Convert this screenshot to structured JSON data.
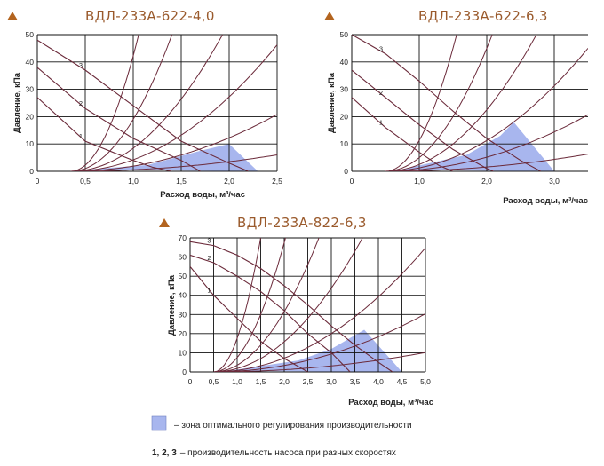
{
  "chart_data": [
    {
      "type": "line",
      "title": "ВДЛ-233А-622-4,0",
      "xlabel": "Расход воды, м³/час",
      "ylabel": "Давление, кПа",
      "xlim": [
        0,
        2.5
      ],
      "ylim": [
        0,
        50
      ],
      "xticks": [
        "0",
        "0,5",
        "1,0",
        "1,5",
        "2,0",
        "2,5"
      ],
      "yticks": [
        "0",
        "10",
        "20",
        "30",
        "40",
        "50"
      ],
      "optimal_zone": [
        [
          0.5,
          0.6
        ],
        [
          1.15,
          2.3
        ],
        [
          1.7,
          7.5
        ],
        [
          2.0,
          10
        ],
        [
          2.3,
          0
        ],
        [
          0.5,
          0.6
        ]
      ],
      "series": [
        {
          "name": "1",
          "values": [
            [
              0.0,
              27
            ],
            [
              0.5,
              11
            ],
            [
              1.0,
              4
            ],
            [
              1.2,
              1.5
            ],
            [
              1.4,
              0
            ]
          ]
        },
        {
          "name": "2",
          "values": [
            [
              0.0,
              38
            ],
            [
              0.5,
              23
            ],
            [
              1.0,
              12
            ],
            [
              1.5,
              4
            ],
            [
              1.7,
              0
            ]
          ]
        },
        {
          "name": "3",
          "values": [
            [
              0.0,
              48
            ],
            [
              0.5,
              37
            ],
            [
              1.0,
              24
            ],
            [
              1.5,
              11
            ],
            [
              2.0,
              3
            ],
            [
              2.2,
              0
            ]
          ]
        }
      ],
      "system_curves": [
        {
          "a": 1.3,
          "x0": 0.35
        },
        {
          "a": 4.5,
          "x0": 0.35
        },
        {
          "a": 10,
          "x0": 0.35
        },
        {
          "a": 20,
          "x0": 0.35
        },
        {
          "a": 45,
          "x0": 0.35
        },
        {
          "a": 100,
          "x0": 0.35
        }
      ]
    },
    {
      "type": "line",
      "title": "ВДЛ-233А-622-6,3",
      "xlabel": "Расход воды, м³/час",
      "ylabel": "Давление, кПа",
      "xlim": [
        0,
        3.5
      ],
      "ylim": [
        0,
        50
      ],
      "xticks": [
        "0",
        "1,0",
        "2,0",
        "3,0"
      ],
      "yticks": [
        "0",
        "10",
        "20",
        "30",
        "40",
        "50"
      ],
      "optimal_zone": [
        [
          0.7,
          0.5
        ],
        [
          1.7,
          6
        ],
        [
          2.2,
          13
        ],
        [
          2.4,
          18
        ],
        [
          3.0,
          0
        ],
        [
          0.7,
          0.5
        ]
      ],
      "series": [
        {
          "name": "1",
          "values": [
            [
              0.0,
              27
            ],
            [
              0.5,
              16
            ],
            [
              1.0,
              7
            ],
            [
              1.3,
              2
            ],
            [
              1.5,
              0
            ]
          ]
        },
        {
          "name": "2",
          "values": [
            [
              0.0,
              37
            ],
            [
              0.5,
              27
            ],
            [
              1.0,
              17
            ],
            [
              1.5,
              8
            ],
            [
              2.0,
              1
            ],
            [
              2.1,
              0
            ]
          ]
        },
        {
          "name": "3",
          "values": [
            [
              0.0,
              50
            ],
            [
              0.5,
              43
            ],
            [
              1.0,
              33
            ],
            [
              1.5,
              22
            ],
            [
              2.0,
              12
            ],
            [
              2.5,
              4
            ],
            [
              2.8,
              0
            ]
          ]
        }
      ],
      "system_curves": [
        {
          "a": 0.7,
          "x0": 0.5
        },
        {
          "a": 2.3,
          "x0": 0.5
        },
        {
          "a": 5,
          "x0": 0.5
        },
        {
          "a": 10,
          "x0": 0.5
        },
        {
          "a": 20,
          "x0": 0.5
        },
        {
          "a": 45,
          "x0": 0.5
        }
      ]
    },
    {
      "type": "line",
      "title": "ВДЛ-233А-822-6,3",
      "xlabel": "Расход воды, м³/час",
      "ylabel": "Давление, кПа",
      "xlim": [
        0,
        5.0
      ],
      "ylim": [
        0,
        70
      ],
      "xticks": [
        "0",
        "0,5",
        "1,0",
        "1,5",
        "2,0",
        "2,5",
        "3,0",
        "3,5",
        "4,0",
        "4,5",
        "5,0"
      ],
      "yticks": [
        "0",
        "10",
        "20",
        "30",
        "40",
        "50",
        "60",
        "70"
      ],
      "optimal_zone": [
        [
          0.8,
          0.5
        ],
        [
          2.3,
          6
        ],
        [
          3.0,
          12
        ],
        [
          3.7,
          22
        ],
        [
          4.5,
          0
        ],
        [
          0.8,
          0.5
        ]
      ],
      "series": [
        {
          "name": "1",
          "values": [
            [
              0.0,
              55
            ],
            [
              0.5,
              40
            ],
            [
              1.0,
              28
            ],
            [
              1.5,
              16
            ],
            [
              2.0,
              7
            ],
            [
              2.5,
              0
            ]
          ]
        },
        {
          "name": "2",
          "values": [
            [
              0.0,
              61
            ],
            [
              0.5,
              57
            ],
            [
              1.0,
              50
            ],
            [
              1.5,
              42
            ],
            [
              2.0,
              32
            ],
            [
              2.5,
              20
            ],
            [
              3.0,
              10
            ],
            [
              3.4,
              0
            ]
          ]
        },
        {
          "name": "3",
          "values": [
            [
              0.0,
              68
            ],
            [
              0.5,
              66
            ],
            [
              1.0,
              61
            ],
            [
              1.5,
              54
            ],
            [
              2.0,
              45
            ],
            [
              2.5,
              35
            ],
            [
              3.0,
              24
            ],
            [
              3.5,
              14
            ],
            [
              4.0,
              5
            ],
            [
              4.3,
              0
            ]
          ]
        }
      ],
      "system_curves": [
        {
          "a": 0.5,
          "x0": 0.5
        },
        {
          "a": 1.5,
          "x0": 0.5
        },
        {
          "a": 3.2,
          "x0": 0.5
        },
        {
          "a": 7,
          "x0": 0.5
        },
        {
          "a": 14,
          "x0": 0.5
        },
        {
          "a": 30,
          "x0": 0.5
        },
        {
          "a": 70,
          "x0": 0.5
        }
      ]
    }
  ],
  "legend": {
    "zone_text": "– зона оптимального регулирования производительности",
    "speeds_bold": "1, 2, 3",
    "speeds_text": "– производительность насоса при разных скоростях"
  },
  "colors": {
    "zone": "#a8b6ee",
    "curve": "#6b2a3a",
    "grid": "#111111",
    "title": "#9a5a2c",
    "marker": "#b3641f"
  }
}
